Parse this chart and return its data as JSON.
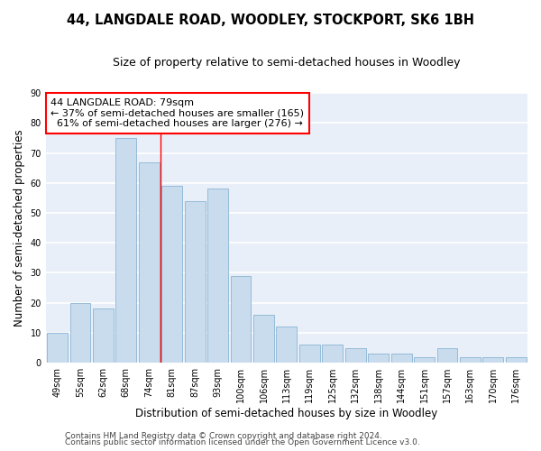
{
  "title_line1": "44, LANGDALE ROAD, WOODLEY, STOCKPORT, SK6 1BH",
  "title_line2": "Size of property relative to semi-detached houses in Woodley",
  "xlabel": "Distribution of semi-detached houses by size in Woodley",
  "ylabel": "Number of semi-detached properties",
  "categories": [
    "49sqm",
    "55sqm",
    "62sqm",
    "68sqm",
    "74sqm",
    "81sqm",
    "87sqm",
    "93sqm",
    "100sqm",
    "106sqm",
    "113sqm",
    "119sqm",
    "125sqm",
    "132sqm",
    "138sqm",
    "144sqm",
    "151sqm",
    "157sqm",
    "163sqm",
    "170sqm",
    "176sqm"
  ],
  "values": [
    10,
    20,
    18,
    75,
    67,
    59,
    54,
    58,
    29,
    16,
    12,
    6,
    6,
    5,
    3,
    3,
    2,
    5,
    2,
    2,
    2
  ],
  "bar_color": "#c9dcee",
  "bar_edge_color": "#8ab4d4",
  "background_color": "#e8eff8",
  "grid_color": "#ffffff",
  "annotation_line1": "44 LANGDALE ROAD: 79sqm",
  "annotation_line2": "← 37% of semi-detached houses are smaller (165)",
  "annotation_line3": "  61% of semi-detached houses are larger (276) →",
  "red_line_index": 4.5,
  "ylim": [
    0,
    90
  ],
  "yticks": [
    0,
    10,
    20,
    30,
    40,
    50,
    60,
    70,
    80,
    90
  ],
  "footer_line1": "Contains HM Land Registry data © Crown copyright and database right 2024.",
  "footer_line2": "Contains public sector information licensed under the Open Government Licence v3.0.",
  "title_fontsize": 10.5,
  "subtitle_fontsize": 9,
  "axis_label_fontsize": 8.5,
  "tick_fontsize": 7,
  "annotation_fontsize": 8,
  "footer_fontsize": 6.5
}
